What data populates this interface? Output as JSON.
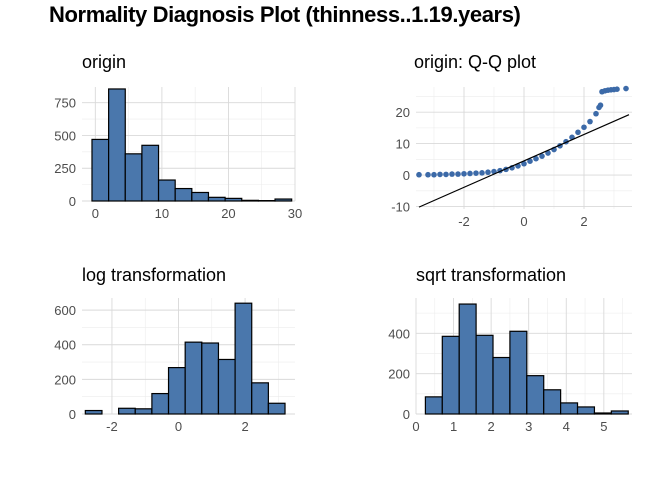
{
  "title": "Normality Diagnosis Plot (thinness..1.19.years)",
  "colors": {
    "fill": "#4a77ac",
    "stroke": "#000000",
    "grid": "#d9d9d9",
    "point": "#3c6aa8",
    "line": "#000000"
  },
  "chart_data": [
    {
      "type": "bar",
      "title": "origin",
      "xlim": [
        -2,
        30
      ],
      "ylim": [
        0,
        870
      ],
      "xticks": [
        0,
        10,
        20,
        30
      ],
      "yticks": [
        0,
        250,
        500,
        750
      ],
      "grid": true,
      "bins": [
        {
          "x0": -0.5,
          "x1": 2,
          "count": 470
        },
        {
          "x0": 2,
          "x1": 4.5,
          "count": 855
        },
        {
          "x0": 4.5,
          "x1": 7,
          "count": 360
        },
        {
          "x0": 7,
          "x1": 9.5,
          "count": 425
        },
        {
          "x0": 9.5,
          "x1": 12,
          "count": 160
        },
        {
          "x0": 12,
          "x1": 14.5,
          "count": 95
        },
        {
          "x0": 14.5,
          "x1": 17,
          "count": 65
        },
        {
          "x0": 17,
          "x1": 19.5,
          "count": 28
        },
        {
          "x0": 19.5,
          "x1": 22,
          "count": 20
        },
        {
          "x0": 22,
          "x1": 24.5,
          "count": 5
        },
        {
          "x0": 24.5,
          "x1": 27,
          "count": 3
        },
        {
          "x0": 27,
          "x1": 29.5,
          "count": 15
        }
      ]
    },
    {
      "type": "scatter",
      "title": "origin: Q-Q plot",
      "xlim": [
        -3.6,
        3.6
      ],
      "ylim": [
        -10.8,
        28
      ],
      "xticks": [
        -2,
        0,
        2
      ],
      "yticks": [
        -10,
        0,
        10,
        20
      ],
      "grid": true,
      "reference_line": {
        "x1": -3.5,
        "y1": -10.2,
        "x2": 3.5,
        "y2": 19.2
      },
      "points": [
        [
          -3.5,
          0.1
        ],
        [
          -3.2,
          0.1
        ],
        [
          -3.0,
          0.1
        ],
        [
          -2.8,
          0.2
        ],
        [
          -2.6,
          0.2
        ],
        [
          -2.4,
          0.3
        ],
        [
          -2.2,
          0.3
        ],
        [
          -2.0,
          0.4
        ],
        [
          -1.8,
          0.5
        ],
        [
          -1.6,
          0.6
        ],
        [
          -1.4,
          0.7
        ],
        [
          -1.2,
          0.9
        ],
        [
          -1.0,
          1.1
        ],
        [
          -0.8,
          1.4
        ],
        [
          -0.6,
          1.8
        ],
        [
          -0.4,
          2.3
        ],
        [
          -0.2,
          2.9
        ],
        [
          0.0,
          3.6
        ],
        [
          0.2,
          4.4
        ],
        [
          0.4,
          5.2
        ],
        [
          0.6,
          6.0
        ],
        [
          0.8,
          7.0
        ],
        [
          1.0,
          8.1
        ],
        [
          1.2,
          9.3
        ],
        [
          1.4,
          10.6
        ],
        [
          1.6,
          12.0
        ],
        [
          1.8,
          13.6
        ],
        [
          2.0,
          15.2
        ],
        [
          2.2,
          17.0
        ],
        [
          2.4,
          19.5
        ],
        [
          2.5,
          21.5
        ],
        [
          2.55,
          22.2
        ],
        [
          2.6,
          26.5
        ],
        [
          2.7,
          26.8
        ],
        [
          2.8,
          27.0
        ],
        [
          2.9,
          27.1
        ],
        [
          3.0,
          27.2
        ],
        [
          3.1,
          27.3
        ],
        [
          3.4,
          27.5
        ]
      ]
    },
    {
      "type": "bar",
      "title": "log transformation",
      "xlim": [
        -2.9,
        3.5
      ],
      "ylim": [
        0,
        670
      ],
      "xticks": [
        -2,
        0,
        2
      ],
      "yticks": [
        0,
        200,
        400,
        600
      ],
      "grid": true,
      "bins": [
        {
          "x0": -2.8,
          "x1": -2.3,
          "count": 20
        },
        {
          "x0": -2.3,
          "x1": -1.8,
          "count": 0
        },
        {
          "x0": -1.8,
          "x1": -1.3,
          "count": 33
        },
        {
          "x0": -1.3,
          "x1": -0.8,
          "count": 30
        },
        {
          "x0": -0.8,
          "x1": -0.3,
          "count": 118
        },
        {
          "x0": -0.3,
          "x1": 0.2,
          "count": 268
        },
        {
          "x0": 0.2,
          "x1": 0.7,
          "count": 415
        },
        {
          "x0": 0.7,
          "x1": 1.2,
          "count": 410
        },
        {
          "x0": 1.2,
          "x1": 1.7,
          "count": 315
        },
        {
          "x0": 1.7,
          "x1": 2.2,
          "count": 640
        },
        {
          "x0": 2.2,
          "x1": 2.7,
          "count": 180
        },
        {
          "x0": 2.7,
          "x1": 3.2,
          "count": 62
        }
      ]
    },
    {
      "type": "bar",
      "title": "sqrt transformation",
      "xlim": [
        0,
        5.75
      ],
      "ylim": [
        0,
        575
      ],
      "xticks": [
        0,
        1,
        2,
        3,
        4,
        5
      ],
      "yticks": [
        0,
        200,
        400
      ],
      "grid": true,
      "bins": [
        {
          "x0": 0.25,
          "x1": 0.7,
          "count": 85
        },
        {
          "x0": 0.7,
          "x1": 1.15,
          "count": 385
        },
        {
          "x0": 1.15,
          "x1": 1.6,
          "count": 545
        },
        {
          "x0": 1.6,
          "x1": 2.05,
          "count": 390
        },
        {
          "x0": 2.05,
          "x1": 2.5,
          "count": 280
        },
        {
          "x0": 2.5,
          "x1": 2.95,
          "count": 410
        },
        {
          "x0": 2.95,
          "x1": 3.4,
          "count": 190
        },
        {
          "x0": 3.4,
          "x1": 3.85,
          "count": 120
        },
        {
          "x0": 3.85,
          "x1": 4.3,
          "count": 55
        },
        {
          "x0": 4.3,
          "x1": 4.75,
          "count": 35
        },
        {
          "x0": 4.75,
          "x1": 5.2,
          "count": 5
        },
        {
          "x0": 5.2,
          "x1": 5.65,
          "count": 15
        }
      ]
    }
  ]
}
